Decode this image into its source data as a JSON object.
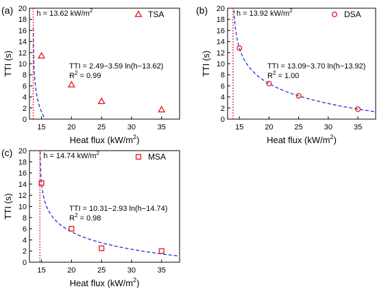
{
  "panels": [
    {
      "panel_label": "(a)",
      "eq_prefix": "TTI = ",
      "eq_expr": "2.49−3.59 ln(h−13.62)",
      "r2_prefix": "R",
      "r2_sup": "2",
      "r2_value": " = 0.99",
      "critical_label": "h = 13.62 kW/m",
      "critical_sup": "2"
    },
    {
      "panel_label": "(b)",
      "eq_prefix": "TTI = ",
      "eq_expr": "13.09−3.70 ln(h−13.92)",
      "r2_prefix": "R",
      "r2_sup": "2",
      "r2_value": " = 1.00",
      "critical_label": "h = 13.92 kW/m",
      "critical_sup": "2"
    },
    {
      "panel_label": "(c)",
      "eq_prefix": "TTI = ",
      "eq_expr": "10.31−2.93 ln(h−14.74)",
      "r2_prefix": "R",
      "r2_sup": "2",
      "r2_value": " = 0.98",
      "critical_label": "h = 14.74 kW/m",
      "critical_sup": "2"
    }
  ],
  "colors": {
    "marker": "#e8202a",
    "fit_line": "#1f2fd6",
    "critical_line": "#e8202a",
    "axis": "#000000"
  },
  "chart_data": [
    {
      "type": "scatter",
      "title": "",
      "xlabel": "Heat flux (kW/m",
      "xlabel_sup": "2",
      "xlabel_end": ")",
      "ylabel": "TTI (s)",
      "xlim": [
        13,
        38
      ],
      "ylim": [
        0,
        20
      ],
      "xticks": [
        15,
        20,
        25,
        30,
        35
      ],
      "yticks": [
        0,
        2,
        4,
        6,
        8,
        10,
        12,
        14,
        16,
        18,
        20
      ],
      "legend": "top-right",
      "series": [
        {
          "name": "TSA",
          "marker": "triangle",
          "x": [
            15,
            20,
            25,
            35
          ],
          "y": [
            11.4,
            6.2,
            3.2,
            1.7
          ]
        }
      ],
      "fit": {
        "a": 2.49,
        "b": 3.59,
        "h0": 13.62
      },
      "critical_h": 13.62
    },
    {
      "type": "scatter",
      "title": "",
      "xlabel": "Heat flux (kW/m",
      "xlabel_sup": "2",
      "xlabel_end": ")",
      "ylabel": "TTI (s)",
      "xlim": [
        13,
        38
      ],
      "ylim": [
        0,
        20
      ],
      "xticks": [
        15,
        20,
        25,
        30,
        35
      ],
      "yticks": [
        0,
        2,
        4,
        6,
        8,
        10,
        12,
        14,
        16,
        18,
        20
      ],
      "legend": "top-right",
      "series": [
        {
          "name": "DSA",
          "marker": "circle",
          "x": [
            15,
            20,
            25,
            35
          ],
          "y": [
            12.8,
            6.4,
            4.2,
            1.8
          ]
        }
      ],
      "fit": {
        "a": 13.09,
        "b": 3.7,
        "h0": 13.92
      },
      "critical_h": 13.92
    },
    {
      "type": "scatter",
      "title": "",
      "xlabel": "Heat flux (kW/m",
      "xlabel_sup": "2",
      "xlabel_end": ")",
      "ylabel": "TTI (s)",
      "xlim": [
        13,
        38
      ],
      "ylim": [
        0,
        20
      ],
      "xticks": [
        15,
        20,
        25,
        30,
        35
      ],
      "yticks": [
        0,
        2,
        4,
        6,
        8,
        10,
        12,
        14,
        16,
        18,
        20
      ],
      "legend": "top-right",
      "series": [
        {
          "name": "MSA",
          "marker": "square",
          "x": [
            15,
            20,
            25,
            35
          ],
          "y": [
            14.2,
            6.0,
            2.5,
            2.0
          ]
        }
      ],
      "fit": {
        "a": 10.31,
        "b": 2.93,
        "h0": 14.74
      },
      "critical_h": 14.74
    }
  ]
}
